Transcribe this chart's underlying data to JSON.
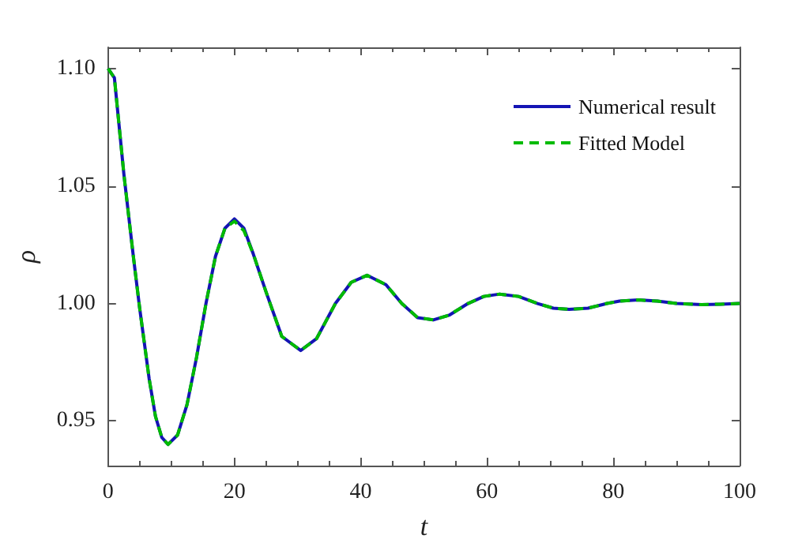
{
  "chart_data": {
    "type": "line",
    "xlabel": "t",
    "ylabel": "ρ",
    "xlim": [
      0,
      100
    ],
    "xticks": [
      0,
      20,
      40,
      60,
      80,
      100
    ],
    "ylim": [
      0.931,
      1.109
    ],
    "yticks": [
      {
        "value": 0.95,
        "label": "0.95"
      },
      {
        "value": 1,
        "label": "1.00"
      },
      {
        "value": 1.05,
        "label": "1.05"
      },
      {
        "value": 1.1,
        "label": "1.10"
      }
    ],
    "grid": false,
    "legend": "top right",
    "marker": "none",
    "x": [
      0,
      1,
      2.5,
      4,
      5,
      6.5,
      7.5,
      8.5,
      9.5,
      11,
      12.5,
      14,
      15.5,
      17,
      18.5,
      20,
      21.5,
      23,
      25,
      27.5,
      30.5,
      33,
      36,
      38.5,
      41,
      44,
      46.5,
      49,
      51.5,
      54,
      57,
      59.5,
      62,
      65,
      68,
      70.5,
      73,
      76,
      79,
      81,
      84,
      87,
      90,
      94,
      97,
      100
    ],
    "series": [
      {
        "name": "Numerical result",
        "color": "#1414b4",
        "line_style": "solid",
        "values": [
          1.1,
          1.096,
          1.055,
          1.02,
          0.998,
          0.968,
          0.952,
          0.943,
          0.94,
          0.944,
          0.957,
          0.977,
          1,
          1.02,
          1.032,
          1.036,
          1.032,
          1.021,
          1.005,
          0.986,
          0.98,
          0.985,
          1,
          1.009,
          1.012,
          1.008,
          1,
          0.994,
          0.993,
          0.995,
          1,
          1.003,
          1.004,
          1.003,
          1,
          0.998,
          0.9975,
          0.998,
          1,
          1.001,
          1.0015,
          1.001,
          1,
          0.9995,
          0.9997,
          1
        ]
      },
      {
        "name": "Fitted Model",
        "color": "#00bb00",
        "line_style": "dashed",
        "values": [
          1.1,
          1.096,
          1.055,
          1.02,
          0.998,
          0.968,
          0.952,
          0.943,
          0.94,
          0.944,
          0.957,
          0.977,
          1,
          1.02,
          1.032,
          1.035,
          1.031,
          1.021,
          1.005,
          0.986,
          0.98,
          0.985,
          1,
          1.009,
          1.012,
          1.008,
          1,
          0.994,
          0.993,
          0.995,
          1,
          1.003,
          1.004,
          1.003,
          1,
          0.998,
          0.9975,
          0.998,
          1,
          1.001,
          1.0015,
          1.001,
          1,
          0.9995,
          0.9997,
          1
        ]
      }
    ]
  }
}
